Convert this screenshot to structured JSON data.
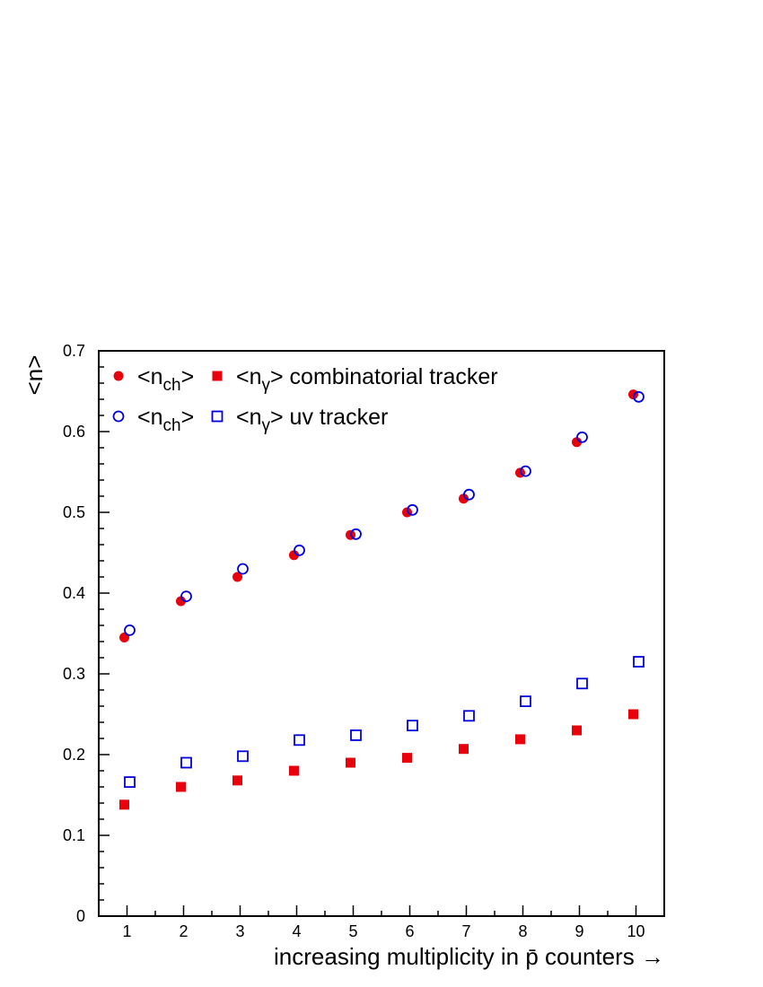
{
  "chart_data": {
    "type": "scatter",
    "xlabel": "increasing multiplicity in p̄ counters →",
    "ylabel": "<n>",
    "xlim": [
      0.5,
      10.5
    ],
    "ylim": [
      0,
      0.7
    ],
    "x_ticks": [
      1,
      2,
      3,
      4,
      5,
      6,
      7,
      8,
      9,
      10
    ],
    "y_ticks": [
      0,
      0.1,
      0.2,
      0.3,
      0.4,
      0.5,
      0.6,
      0.7
    ],
    "legend_placement": "top-left",
    "grid": false,
    "series": [
      {
        "name": "<n_ch> combinatorial tracker",
        "marker": "filled-circle",
        "color": "#e8000b",
        "x": [
          1,
          2,
          3,
          4,
          5,
          6,
          7,
          8,
          9,
          10
        ],
        "y": [
          0.345,
          0.39,
          0.42,
          0.447,
          0.472,
          0.5,
          0.517,
          0.549,
          0.587,
          0.646
        ]
      },
      {
        "name": "<n_γ> combinatorial tracker",
        "marker": "filled-square",
        "color": "#e8000b",
        "x": [
          1,
          2,
          3,
          4,
          5,
          6,
          7,
          8,
          9,
          10
        ],
        "y": [
          0.138,
          0.16,
          0.168,
          0.18,
          0.19,
          0.196,
          0.207,
          0.219,
          0.23,
          0.25
        ]
      },
      {
        "name": "<n_ch> uv tracker",
        "marker": "open-circle",
        "color": "#0000dd",
        "x": [
          1,
          2,
          3,
          4,
          5,
          6,
          7,
          8,
          9,
          10
        ],
        "y": [
          0.354,
          0.396,
          0.43,
          0.453,
          0.473,
          0.503,
          0.522,
          0.551,
          0.593,
          0.643
        ]
      },
      {
        "name": "<n_γ> uv tracker",
        "marker": "open-square",
        "color": "#0000dd",
        "x": [
          1,
          2,
          3,
          4,
          5,
          6,
          7,
          8,
          9,
          10
        ],
        "y": [
          0.166,
          0.19,
          0.198,
          0.218,
          0.224,
          0.236,
          0.248,
          0.266,
          0.288,
          0.315
        ]
      }
    ],
    "legend": [
      {
        "nch_label": "<n",
        "nch_sub": "ch",
        "nch_close": ">",
        "ngamma_label": "<n",
        "ngamma_sub": "γ",
        "ngamma_close": ">",
        "text": "combinatorial tracker"
      },
      {
        "nch_label": "<n",
        "nch_sub": "ch",
        "nch_close": ">",
        "ngamma_label": "<n",
        "ngamma_sub": "γ",
        "ngamma_close": ">",
        "text": "uv tracker"
      }
    ]
  }
}
